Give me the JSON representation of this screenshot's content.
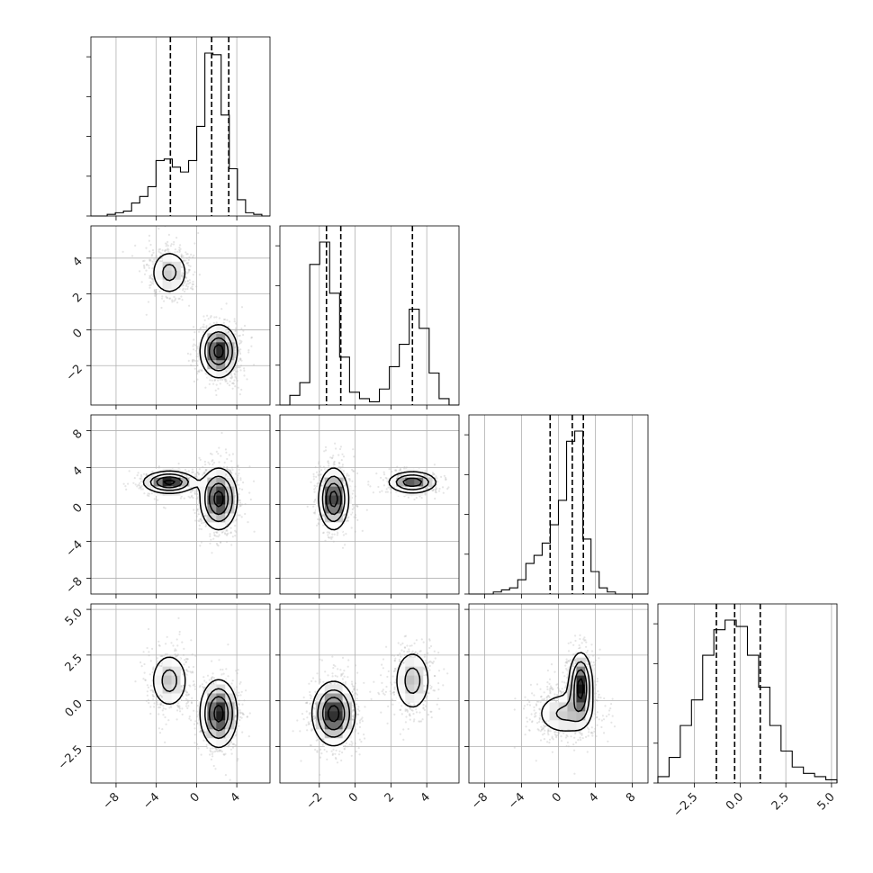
{
  "chart_data": {
    "type": "corner",
    "parameters": [
      "p0",
      "p1",
      "p2",
      "p3"
    ],
    "colors": {
      "line": "#000000",
      "grid": "#b0b0b0",
      "points": "#b5b5b5",
      "background": "#ffffff"
    },
    "grid": true,
    "axes": {
      "p0": {
        "range": [
          -10.5,
          7.3
        ],
        "ticks": [
          -8,
          -4,
          0,
          4
        ],
        "tick_labels": [
          "−8",
          "−4",
          "0",
          "4"
        ]
      },
      "p1": {
        "range": [
          -4.2,
          5.8
        ],
        "ticks": [
          -2,
          0,
          2,
          4
        ],
        "tick_labels": [
          "−2",
          "0",
          "2",
          "4"
        ]
      },
      "p2": {
        "range": [
          -9.7,
          9.7
        ],
        "ticks": [
          -8,
          -4,
          0,
          4,
          8
        ],
        "tick_labels": [
          "−8",
          "−4",
          "0",
          "4",
          "8"
        ]
      },
      "p3": {
        "range": [
          -4.5,
          5.3
        ],
        "ticks": [
          -2.5,
          0.0,
          2.5,
          5.0
        ],
        "tick_labels": [
          "−2.5",
          "0.0",
          "2.5",
          "5.0"
        ]
      }
    },
    "histograms": [
      {
        "param": "p0",
        "bins": [
          -10.5,
          7.3
        ],
        "counts": [
          0,
          0,
          1,
          2,
          3,
          8,
          12,
          18,
          34,
          35,
          30,
          27,
          34,
          55,
          100,
          99,
          62,
          29,
          10,
          2,
          1,
          0
        ],
        "quantiles": [
          -2.6,
          1.5,
          3.2
        ]
      },
      {
        "param": "p1",
        "bins": [
          -4.2,
          5.8
        ],
        "counts": [
          0,
          3,
          7,
          44,
          51,
          35,
          15,
          4,
          2,
          1,
          5,
          12,
          19,
          30,
          24,
          10,
          2,
          0
        ],
        "quantiles": [
          -1.6,
          -0.8,
          3.2
        ]
      },
      {
        "param": "p2",
        "bins": [
          -9.7,
          9.7
        ],
        "counts": [
          0,
          0,
          0,
          1,
          2,
          3,
          7,
          15,
          19,
          25,
          34,
          46,
          75,
          80,
          27,
          11,
          3,
          1,
          0,
          0,
          0,
          0
        ],
        "quantiles": [
          -0.9,
          1.5,
          2.7
        ]
      },
      {
        "param": "p3",
        "bins": [
          -4.5,
          5.3
        ],
        "counts": [
          2,
          8,
          18,
          26,
          40,
          48,
          51,
          49,
          40,
          30,
          18,
          10,
          5,
          3,
          2,
          1
        ],
        "quantiles": [
          -1.3,
          -0.3,
          1.1
        ]
      }
    ],
    "pairs": [
      {
        "x": "p0",
        "y": "p1",
        "modes": [
          {
            "center": [
              -2.7,
              3.2
            ],
            "sigma": [
              1.1,
              0.75
            ],
            "weight": 0.33
          },
          {
            "center": [
              2.2,
              -1.2
            ],
            "sigma": [
              1.0,
              0.8
            ],
            "weight": 0.67
          }
        ]
      },
      {
        "x": "p0",
        "y": "p2",
        "modes": [
          {
            "center": [
              -2.7,
              2.4
            ],
            "sigma": [
              1.4,
              0.65
            ],
            "weight": 0.33
          },
          {
            "center": [
              2.2,
              0.6
            ],
            "sigma": [
              1.0,
              1.8
            ],
            "weight": 0.67
          }
        ]
      },
      {
        "x": "p1",
        "y": "p2",
        "modes": [
          {
            "center": [
              -1.2,
              0.6
            ],
            "sigma": [
              0.45,
              1.8
            ],
            "weight": 0.67
          },
          {
            "center": [
              3.2,
              2.4
            ],
            "sigma": [
              0.75,
              0.65
            ],
            "weight": 0.33
          }
        ]
      },
      {
        "x": "p0",
        "y": "p3",
        "modes": [
          {
            "center": [
              -2.7,
              1.1
            ],
            "sigma": [
              1.1,
              0.9
            ],
            "weight": 0.33
          },
          {
            "center": [
              2.2,
              -0.7
            ],
            "sigma": [
              1.0,
              1.0
            ],
            "weight": 0.67
          }
        ]
      },
      {
        "x": "p1",
        "y": "p3",
        "modes": [
          {
            "center": [
              -1.2,
              -0.7
            ],
            "sigma": [
              0.65,
              0.95
            ],
            "weight": 0.67
          },
          {
            "center": [
              3.2,
              1.1
            ],
            "sigma": [
              0.6,
              1.0
            ],
            "weight": 0.33
          }
        ]
      },
      {
        "x": "p2",
        "y": "p3",
        "modes": [
          {
            "center": [
              0.6,
              -0.7
            ],
            "sigma": [
              1.8,
              0.7
            ],
            "weight": 0.45
          },
          {
            "center": [
              2.4,
              0.8
            ],
            "sigma": [
              0.7,
              1.0
            ],
            "weight": 0.55
          }
        ]
      }
    ]
  }
}
